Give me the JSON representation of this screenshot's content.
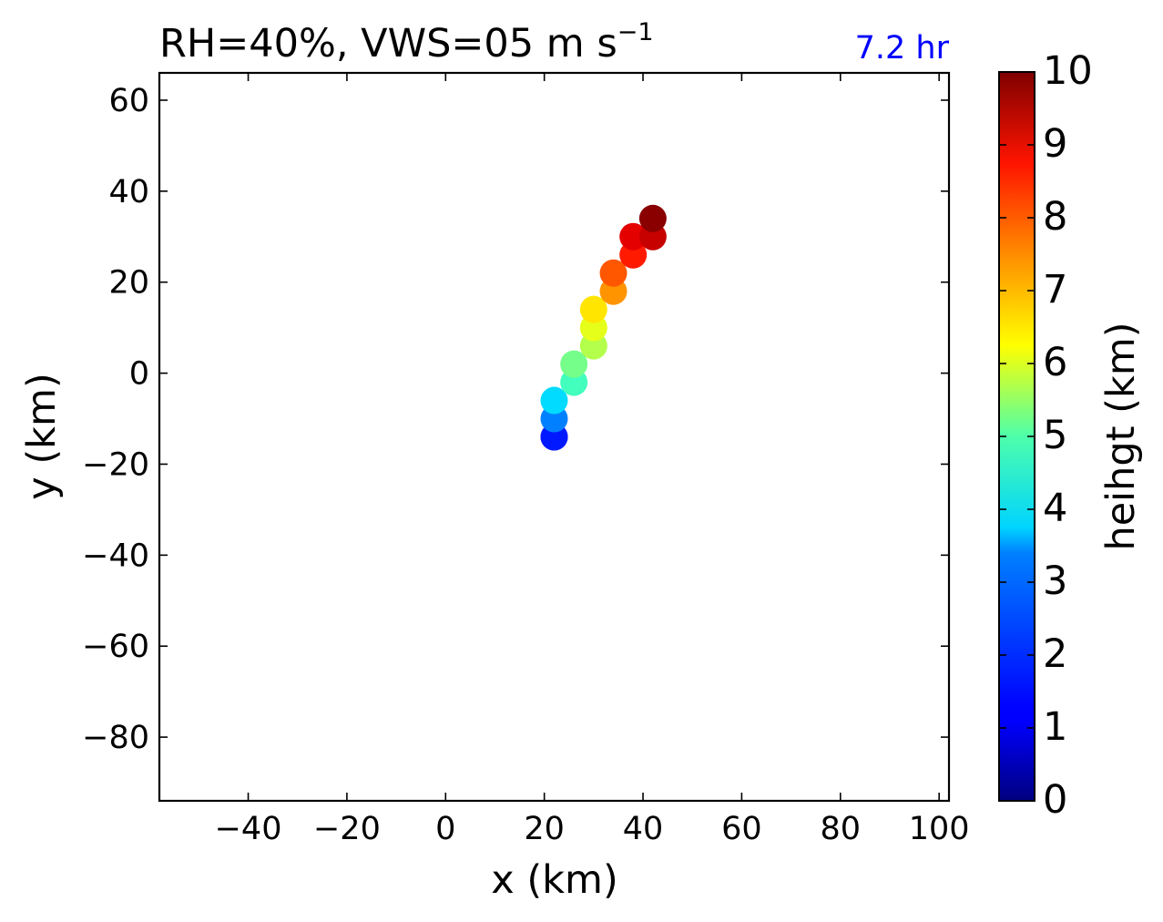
{
  "chart_data": {
    "type": "scatter",
    "title": "RH=40%, VWS=05 m s",
    "title_superscript": "−1",
    "annotation": "7.2 hr",
    "annotation_color": "#0000ff",
    "xlabel": "x (km)",
    "ylabel": "y (km)",
    "xlim": [
      -58,
      102
    ],
    "ylim": [
      -94,
      66
    ],
    "xticks": [
      -40,
      -20,
      0,
      20,
      40,
      60,
      80,
      100
    ],
    "xtick_labels": [
      "−40",
      "−20",
      "0",
      "20",
      "40",
      "60",
      "80",
      "100"
    ],
    "yticks": [
      60,
      40,
      20,
      0,
      -20,
      -40,
      -60,
      -80
    ],
    "ytick_labels": [
      "60",
      "40",
      "20",
      "0",
      "−20",
      "−40",
      "−60",
      "−80"
    ],
    "grid": false,
    "colormap": "jet",
    "colorbar": {
      "label": "heihgt (km)",
      "range": [
        0,
        10
      ],
      "ticks": [
        "0",
        "1",
        "2",
        "3",
        "4",
        "5",
        "6",
        "7",
        "8",
        "9",
        "10"
      ]
    },
    "points": [
      {
        "x": 22,
        "y": -14,
        "height": 1.0
      },
      {
        "x": 22,
        "y": -14,
        "height": 1.5
      },
      {
        "x": 22,
        "y": -10,
        "height": 2.5
      },
      {
        "x": 22,
        "y": -6,
        "height": 3.4
      },
      {
        "x": 26,
        "y": -2,
        "height": 4.4
      },
      {
        "x": 26,
        "y": 2,
        "height": 4.9
      },
      {
        "x": 30,
        "y": 6,
        "height": 5.5
      },
      {
        "x": 30,
        "y": 10,
        "height": 6.0
      },
      {
        "x": 30,
        "y": 14,
        "height": 6.5
      },
      {
        "x": 34,
        "y": 18,
        "height": 7.3
      },
      {
        "x": 34,
        "y": 22,
        "height": 7.9
      },
      {
        "x": 38,
        "y": 26,
        "height": 8.5
      },
      {
        "x": 38,
        "y": 30,
        "height": 9.0
      },
      {
        "x": 42,
        "y": 30,
        "height": 9.3
      },
      {
        "x": 42,
        "y": 34,
        "height": 9.9
      }
    ]
  }
}
